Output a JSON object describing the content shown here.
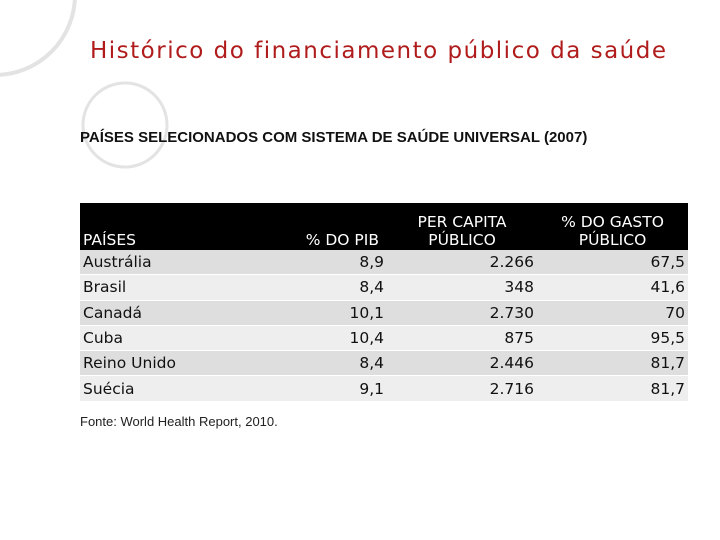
{
  "slide": {
    "title": "Histórico do financiamento público da saúde",
    "subtitle": "PAÍSES SELECIONADOS COM SISTEMA DE SAÚDE UNIVERSAL (2007)",
    "source": "Fonte: World Health Report, 2010."
  },
  "table": {
    "headers": {
      "country": "PAÍSES",
      "pib": "% DO PIB",
      "per_capita_line1": "PER CAPITA",
      "per_capita_line2": "PÚBLICO",
      "gasto_line1": "% DO GASTO",
      "gasto_line2": "PÚBLICO"
    },
    "rows": [
      {
        "country": "Austrália",
        "pib": "8,9",
        "per_capita": "2.266",
        "gasto": "67,5"
      },
      {
        "country": "Brasil",
        "pib": "8,4",
        "per_capita": "348",
        "gasto": "41,6"
      },
      {
        "country": "Canadá",
        "pib": "10,1",
        "per_capita": "2.730",
        "gasto": "70"
      },
      {
        "country": "Cuba",
        "pib": "10,4",
        "per_capita": "875",
        "gasto": "95,5"
      },
      {
        "country": "Reino Unido",
        "pib": "8,4",
        "per_capita": "2.446",
        "gasto": "81,7"
      },
      {
        "country": "Suécia",
        "pib": "9,1",
        "per_capita": "2.716",
        "gasto": "81,7"
      }
    ]
  },
  "colors": {
    "title": "#b01c1c",
    "header_bg": "#000000",
    "row_odd": "#dedede",
    "row_even": "#eeeeee",
    "decoration": "#e3e3e3"
  }
}
